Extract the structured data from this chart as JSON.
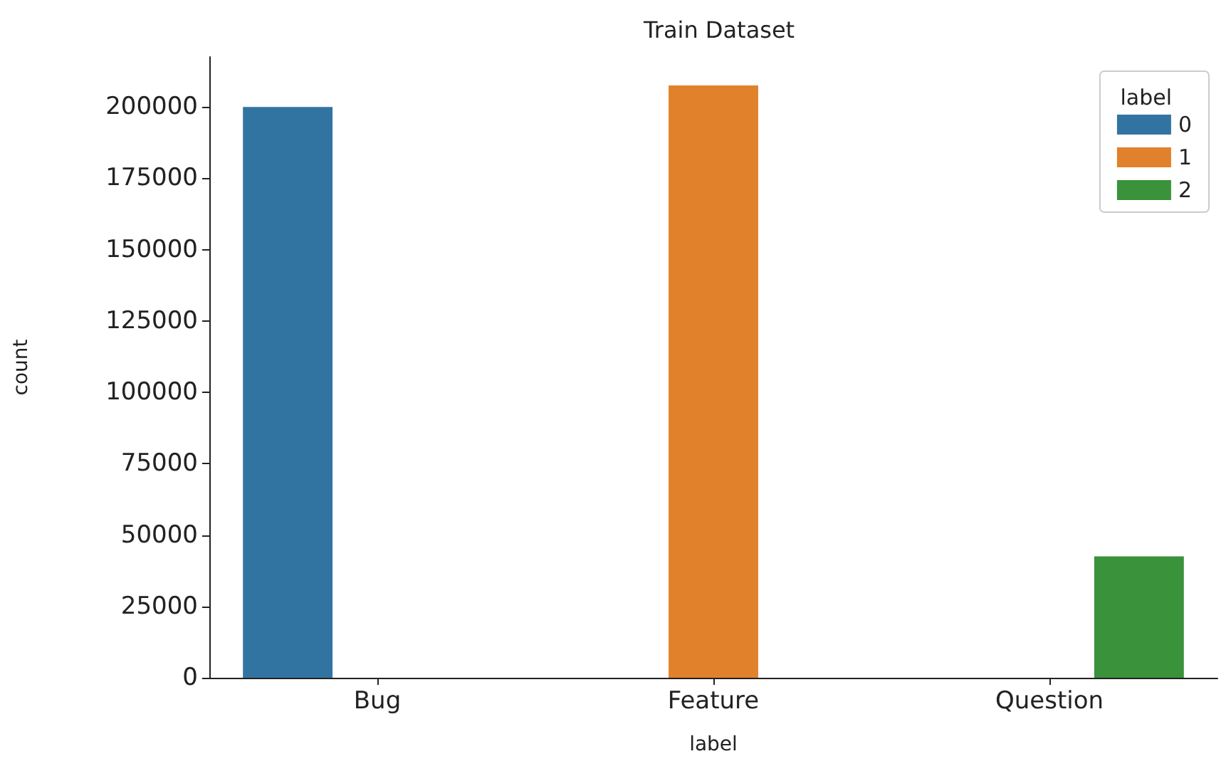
{
  "chart_data": {
    "type": "bar",
    "title": "Train Dataset",
    "xlabel": "label",
    "ylabel": "count",
    "legend_title": "label",
    "categories": [
      "Bug",
      "Feature",
      "Question"
    ],
    "series": [
      {
        "name": "0",
        "color": "#3274a1",
        "values": [
          200000,
          null,
          null
        ]
      },
      {
        "name": "1",
        "color": "#e1812c",
        "values": [
          null,
          207500,
          null
        ]
      },
      {
        "name": "2",
        "color": "#3a923a",
        "values": [
          null,
          null,
          42500
        ]
      }
    ],
    "ylim": [
      0,
      217500
    ],
    "yticks": [
      0,
      25000,
      50000,
      75000,
      100000,
      125000,
      150000,
      175000,
      200000
    ],
    "grid": false,
    "legend": "top right"
  }
}
